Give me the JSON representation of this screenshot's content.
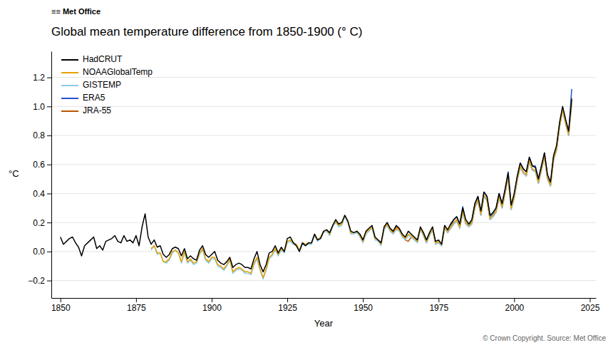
{
  "chart_data": {
    "type": "line",
    "title": "Global mean temperature difference from 1850-1900 (° C)",
    "xlabel": "Year",
    "ylabel": "°C",
    "annotations": [
      "≡≡ Met Office",
      "© Crown Copyright. Source: Met Office"
    ],
    "xlim": [
      1847,
      2027
    ],
    "xticks": [
      1850,
      1875,
      1900,
      1925,
      1950,
      1975,
      2000,
      2025
    ],
    "ylim": [
      -0.32,
      1.38
    ],
    "yticks": [
      {
        "value": -0.2,
        "label": "−0.2"
      },
      {
        "value": 0.0,
        "label": "0.0"
      },
      0.2,
      0.4,
      0.6,
      0.8,
      {
        "value": 1.0,
        "label": "1.0"
      },
      1.2
    ],
    "grid": true,
    "legend": "upper left",
    "series": [
      {
        "name": "HadCRUT",
        "color": "#000000",
        "x": [
          1850,
          1851,
          1852,
          1853,
          1854,
          1855,
          1856,
          1857,
          1858,
          1859,
          1860,
          1861,
          1862,
          1863,
          1864,
          1865,
          1866,
          1867,
          1868,
          1869,
          1870,
          1871,
          1872,
          1873,
          1874,
          1875,
          1876,
          1877,
          1878,
          1879,
          1880,
          1881,
          1882,
          1883,
          1884,
          1885,
          1886,
          1887,
          1888,
          1889,
          1890,
          1891,
          1892,
          1893,
          1894,
          1895,
          1896,
          1897,
          1898,
          1899,
          1900,
          1901,
          1902,
          1903,
          1904,
          1905,
          1906,
          1907,
          1908,
          1909,
          1910,
          1911,
          1912,
          1913,
          1914,
          1915,
          1916,
          1917,
          1918,
          1919,
          1920,
          1921,
          1922,
          1923,
          1924,
          1925,
          1926,
          1927,
          1928,
          1929,
          1930,
          1931,
          1932,
          1933,
          1934,
          1935,
          1936,
          1937,
          1938,
          1939,
          1940,
          1941,
          1942,
          1943,
          1944,
          1945,
          1946,
          1947,
          1948,
          1949,
          1950,
          1951,
          1952,
          1953,
          1954,
          1955,
          1956,
          1957,
          1958,
          1959,
          1960,
          1961,
          1962,
          1963,
          1964,
          1965,
          1966,
          1967,
          1968,
          1969,
          1970,
          1971,
          1972,
          1973,
          1974,
          1975,
          1976,
          1977,
          1978,
          1979,
          1980,
          1981,
          1982,
          1983,
          1984,
          1985,
          1986,
          1987,
          1988,
          1989,
          1990,
          1991,
          1992,
          1993,
          1994,
          1995,
          1996,
          1997,
          1998,
          1999,
          2000,
          2001,
          2002,
          2003,
          2004,
          2005,
          2006,
          2007,
          2008,
          2009,
          2010,
          2011,
          2012,
          2013,
          2014,
          2015,
          2016,
          2017,
          2018,
          2019
        ],
        "values": [
          0.1,
          0.05,
          0.07,
          0.09,
          0.1,
          0.06,
          0.03,
          -0.03,
          0.04,
          0.06,
          0.08,
          0.1,
          0.02,
          0.04,
          0.01,
          0.07,
          0.08,
          0.09,
          0.11,
          0.07,
          0.06,
          0.11,
          0.07,
          0.08,
          0.06,
          0.11,
          0.04,
          0.17,
          0.26,
          0.1,
          0.05,
          0.08,
          0.03,
          0.04,
          -0.02,
          -0.04,
          -0.02,
          0.02,
          0.03,
          0.02,
          -0.03,
          0.02,
          -0.05,
          -0.03,
          -0.05,
          -0.06,
          0.01,
          0.04,
          -0.02,
          -0.04,
          -0.02,
          0.0,
          -0.06,
          -0.08,
          -0.09,
          -0.07,
          -0.04,
          -0.11,
          -0.09,
          -0.08,
          -0.09,
          -0.11,
          -0.11,
          -0.12,
          -0.05,
          0.0,
          -0.09,
          -0.14,
          -0.09,
          -0.01,
          0.0,
          0.04,
          -0.01,
          0.03,
          0.0,
          0.09,
          0.1,
          0.06,
          0.04,
          0.0,
          0.06,
          0.04,
          0.06,
          0.06,
          0.12,
          0.08,
          0.09,
          0.14,
          0.15,
          0.13,
          0.18,
          0.22,
          0.19,
          0.2,
          0.25,
          0.21,
          0.14,
          0.13,
          0.14,
          0.12,
          0.08,
          0.14,
          0.16,
          0.18,
          0.1,
          0.08,
          0.06,
          0.17,
          0.2,
          0.16,
          0.14,
          0.18,
          0.16,
          0.12,
          0.1,
          0.14,
          0.12,
          0.1,
          0.08,
          0.17,
          0.13,
          0.08,
          0.13,
          0.17,
          0.07,
          0.08,
          0.05,
          0.18,
          0.15,
          0.19,
          0.22,
          0.24,
          0.19,
          0.3,
          0.22,
          0.19,
          0.22,
          0.33,
          0.38,
          0.28,
          0.41,
          0.38,
          0.25,
          0.27,
          0.3,
          0.4,
          0.33,
          0.43,
          0.54,
          0.32,
          0.4,
          0.52,
          0.61,
          0.57,
          0.55,
          0.65,
          0.59,
          0.58,
          0.5,
          0.59,
          0.68,
          0.53,
          0.48,
          0.66,
          0.73,
          0.89,
          1.0,
          0.91,
          0.83,
          1.05
        ]
      },
      {
        "name": "NOAAGlobalTemp",
        "color": "#e8a000",
        "x": [
          1880,
          1881,
          1882,
          1883,
          1884,
          1885,
          1886,
          1887,
          1888,
          1889,
          1890,
          1891,
          1892,
          1893,
          1894,
          1895,
          1896,
          1897,
          1898,
          1899,
          1900,
          1901,
          1902,
          1903,
          1904,
          1905,
          1906,
          1907,
          1908,
          1909,
          1910,
          1911,
          1912,
          1913,
          1914,
          1915,
          1916,
          1917,
          1918,
          1919,
          1920,
          1921,
          1922,
          1923,
          1924,
          1925,
          1926,
          1927,
          1928,
          1929,
          1930,
          1931,
          1932,
          1933,
          1934,
          1935,
          1936,
          1937,
          1938,
          1939,
          1940,
          1941,
          1942,
          1943,
          1944,
          1945,
          1946,
          1947,
          1948,
          1949,
          1950,
          1951,
          1952,
          1953,
          1954,
          1955,
          1956,
          1957,
          1958,
          1959,
          1960,
          1961,
          1962,
          1963,
          1964,
          1965,
          1966,
          1967,
          1968,
          1969,
          1970,
          1971,
          1972,
          1973,
          1974,
          1975,
          1976,
          1977,
          1978,
          1979,
          1980,
          1981,
          1982,
          1983,
          1984,
          1985,
          1986,
          1987,
          1988,
          1989,
          1990,
          1991,
          1992,
          1993,
          1994,
          1995,
          1996,
          1997,
          1998,
          1999,
          2000,
          2001,
          2002,
          2003,
          2004,
          2005,
          2006,
          2007,
          2008,
          2009,
          2010,
          2011,
          2012,
          2013,
          2014,
          2015,
          2016,
          2017,
          2018,
          2019
        ],
        "values": [
          0.02,
          0.04,
          -0.01,
          -0.01,
          -0.07,
          -0.07,
          -0.05,
          0.0,
          0.01,
          -0.01,
          -0.07,
          0.0,
          -0.07,
          -0.05,
          -0.08,
          -0.07,
          -0.01,
          0.02,
          -0.05,
          -0.07,
          -0.04,
          -0.04,
          -0.09,
          -0.1,
          -0.12,
          -0.09,
          -0.05,
          -0.14,
          -0.12,
          -0.11,
          -0.12,
          -0.14,
          -0.14,
          -0.15,
          -0.08,
          -0.04,
          -0.12,
          -0.18,
          -0.12,
          -0.04,
          -0.02,
          0.02,
          -0.02,
          0.02,
          0.0,
          0.07,
          0.08,
          0.06,
          0.05,
          0.01,
          0.06,
          0.05,
          0.06,
          0.06,
          0.12,
          0.08,
          0.1,
          0.14,
          0.15,
          0.12,
          0.18,
          0.21,
          0.18,
          0.19,
          0.25,
          0.21,
          0.13,
          0.13,
          0.14,
          0.11,
          0.07,
          0.13,
          0.15,
          0.17,
          0.09,
          0.08,
          0.05,
          0.16,
          0.19,
          0.15,
          0.13,
          0.16,
          0.15,
          0.11,
          0.09,
          0.12,
          0.11,
          0.09,
          0.07,
          0.16,
          0.12,
          0.07,
          0.12,
          0.16,
          0.06,
          0.07,
          0.05,
          0.17,
          0.14,
          0.17,
          0.2,
          0.22,
          0.17,
          0.28,
          0.2,
          0.18,
          0.2,
          0.31,
          0.36,
          0.26,
          0.39,
          0.36,
          0.23,
          0.25,
          0.28,
          0.38,
          0.31,
          0.41,
          0.52,
          0.3,
          0.38,
          0.5,
          0.59,
          0.55,
          0.53,
          0.63,
          0.57,
          0.56,
          0.48,
          0.57,
          0.66,
          0.51,
          0.46,
          0.64,
          0.71,
          0.87,
          0.98,
          0.89,
          0.81,
          1.02
        ]
      },
      {
        "name": "GISTEMP",
        "color": "#88ccee",
        "x": [
          1880,
          1881,
          1882,
          1883,
          1884,
          1885,
          1886,
          1887,
          1888,
          1889,
          1890,
          1891,
          1892,
          1893,
          1894,
          1895,
          1896,
          1897,
          1898,
          1899,
          1900,
          1901,
          1902,
          1903,
          1904,
          1905,
          1906,
          1907,
          1908,
          1909,
          1910,
          1911,
          1912,
          1913,
          1914,
          1915,
          1916,
          1917,
          1918,
          1919,
          1920,
          1921,
          1922,
          1923,
          1924,
          1925,
          1926,
          1927,
          1928,
          1929,
          1930,
          1931,
          1932,
          1933,
          1934,
          1935,
          1936,
          1937,
          1938,
          1939,
          1940,
          1941,
          1942,
          1943,
          1944,
          1945,
          1946,
          1947,
          1948,
          1949,
          1950,
          1951,
          1952,
          1953,
          1954,
          1955,
          1956,
          1957,
          1958,
          1959,
          1960,
          1961,
          1962,
          1963,
          1964,
          1965,
          1966,
          1967,
          1968,
          1969,
          1970,
          1971,
          1972,
          1973,
          1974,
          1975,
          1976,
          1977,
          1978,
          1979,
          1980,
          1981,
          1982,
          1983,
          1984,
          1985,
          1986,
          1987,
          1988,
          1989,
          1990,
          1991,
          1992,
          1993,
          1994,
          1995,
          1996,
          1997,
          1998,
          1999,
          2000,
          2001,
          2002,
          2003,
          2004,
          2005,
          2006,
          2007,
          2008,
          2009,
          2010,
          2011,
          2012,
          2013,
          2014,
          2015,
          2016,
          2017,
          2018,
          2019
        ],
        "values": [
          0.01,
          0.04,
          -0.02,
          -0.01,
          -0.07,
          -0.08,
          -0.06,
          -0.01,
          0.01,
          -0.01,
          -0.08,
          -0.01,
          -0.08,
          -0.06,
          -0.09,
          -0.08,
          -0.02,
          0.01,
          -0.06,
          -0.08,
          -0.05,
          -0.05,
          -0.1,
          -0.11,
          -0.13,
          -0.1,
          -0.06,
          -0.15,
          -0.13,
          -0.12,
          -0.13,
          -0.15,
          -0.15,
          -0.16,
          -0.09,
          -0.05,
          -0.13,
          -0.19,
          -0.13,
          -0.05,
          -0.03,
          0.01,
          -0.03,
          0.01,
          -0.01,
          0.06,
          0.07,
          0.05,
          0.04,
          0.0,
          0.05,
          0.04,
          0.05,
          0.05,
          0.11,
          0.07,
          0.09,
          0.13,
          0.14,
          0.11,
          0.17,
          0.2,
          0.17,
          0.18,
          0.24,
          0.2,
          0.12,
          0.12,
          0.13,
          0.1,
          0.06,
          0.12,
          0.14,
          0.16,
          0.08,
          0.07,
          0.04,
          0.15,
          0.18,
          0.14,
          0.12,
          0.15,
          0.14,
          0.1,
          0.08,
          0.11,
          0.1,
          0.08,
          0.06,
          0.15,
          0.11,
          0.06,
          0.11,
          0.15,
          0.05,
          0.06,
          0.04,
          0.16,
          0.13,
          0.16,
          0.19,
          0.21,
          0.16,
          0.27,
          0.19,
          0.17,
          0.19,
          0.3,
          0.35,
          0.25,
          0.38,
          0.35,
          0.22,
          0.24,
          0.27,
          0.37,
          0.3,
          0.4,
          0.51,
          0.29,
          0.37,
          0.49,
          0.58,
          0.54,
          0.52,
          0.62,
          0.56,
          0.55,
          0.47,
          0.56,
          0.65,
          0.5,
          0.45,
          0.63,
          0.7,
          0.86,
          0.97,
          0.88,
          0.8,
          1.01
        ]
      },
      {
        "name": "ERA5",
        "color": "#2255cc",
        "x": [
          1979,
          1980,
          1981,
          1982,
          1983,
          1984,
          1985,
          1986,
          1987,
          1988,
          1989,
          1990,
          1991,
          1992,
          1993,
          1994,
          1995,
          1996,
          1997,
          1998,
          1999,
          2000,
          2001,
          2002,
          2003,
          2004,
          2005,
          2006,
          2007,
          2008,
          2009,
          2010,
          2011,
          2012,
          2013,
          2014,
          2015,
          2016,
          2017,
          2018,
          2019
        ],
        "values": [
          0.17,
          0.22,
          0.24,
          0.19,
          0.31,
          0.2,
          0.18,
          0.21,
          0.33,
          0.38,
          0.27,
          0.41,
          0.38,
          0.24,
          0.26,
          0.3,
          0.4,
          0.33,
          0.43,
          0.55,
          0.31,
          0.39,
          0.51,
          0.61,
          0.57,
          0.55,
          0.65,
          0.59,
          0.59,
          0.5,
          0.59,
          0.68,
          0.52,
          0.47,
          0.65,
          0.72,
          0.88,
          0.99,
          0.9,
          0.82,
          1.12
        ]
      },
      {
        "name": "JRA-55",
        "color": "#bb5500",
        "x": [
          1958,
          1959,
          1960,
          1961,
          1962,
          1963,
          1964,
          1965,
          1966,
          1967,
          1968,
          1969,
          1970,
          1971,
          1972,
          1973,
          1974,
          1975,
          1976,
          1977,
          1978,
          1979,
          1980,
          1981,
          1982,
          1983,
          1984,
          1985,
          1986,
          1987,
          1988,
          1989,
          1990,
          1991,
          1992,
          1993,
          1994,
          1995,
          1996,
          1997,
          1998,
          1999,
          2000,
          2001,
          2002,
          2003,
          2004,
          2005,
          2006,
          2007,
          2008,
          2009,
          2010,
          2011,
          2012,
          2013,
          2014,
          2015,
          2016,
          2017,
          2018,
          2019
        ],
        "values": [
          0.19,
          0.15,
          0.13,
          0.17,
          0.15,
          0.11,
          0.08,
          0.07,
          0.1,
          0.09,
          0.07,
          0.16,
          0.11,
          0.06,
          0.11,
          0.15,
          0.05,
          0.06,
          0.04,
          0.16,
          0.13,
          0.16,
          0.19,
          0.21,
          0.16,
          0.27,
          0.19,
          0.17,
          0.19,
          0.3,
          0.35,
          0.25,
          0.38,
          0.35,
          0.22,
          0.24,
          0.27,
          0.37,
          0.3,
          0.4,
          0.51,
          0.29,
          0.37,
          0.49,
          0.58,
          0.54,
          0.52,
          0.62,
          0.56,
          0.55,
          0.47,
          0.56,
          0.65,
          0.5,
          0.45,
          0.63,
          0.7,
          0.86,
          0.97,
          0.88,
          0.8,
          1.06
        ]
      }
    ]
  }
}
